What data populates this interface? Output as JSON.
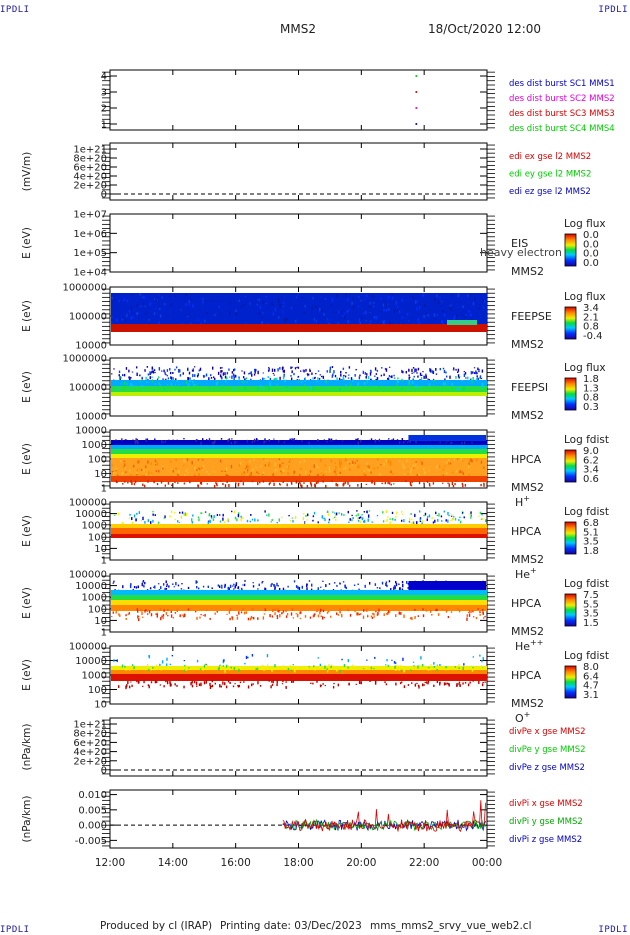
{
  "corner_label": "IPDLI",
  "header": {
    "title": "MMS2",
    "datetime": "18/Oct/2020 12:00"
  },
  "footer": {
    "producer": "Produced by cl (IRAP)",
    "printing": "Printing date: 03/Dec/2023",
    "script": "mms_mms2_srvy_vue_web2.cl"
  },
  "colors": {
    "blue": "#0000cc",
    "magenta": "#e000e0",
    "red": "#dd0000",
    "green": "#00cc00",
    "dark_green": "#00aa00"
  },
  "x_ticks": [
    "12:00",
    "14:00",
    "16:00",
    "18:00",
    "20:00",
    "22:00",
    "00:00"
  ],
  "chart_data": [
    {
      "id": "burst",
      "type": "scatter",
      "yticks": [
        "4",
        "3",
        "2",
        "1"
      ],
      "legend": [
        {
          "text": "des dist burst SC1 MMS1",
          "color": "#0000cc"
        },
        {
          "text": "des dist burst SC2 MMS2",
          "color": "#e000e0"
        },
        {
          "text": "des dist burst SC3 MMS3",
          "color": "#dd0000"
        },
        {
          "text": "des dist burst SC4 MMS4",
          "color": "#00cc00"
        }
      ],
      "series": [
        {
          "x": "21:45",
          "y": 1,
          "color": "#0000cc"
        },
        {
          "x": "21:45",
          "y": 2,
          "color": "#e000e0"
        },
        {
          "x": "21:45",
          "y": 3,
          "color": "#dd0000"
        },
        {
          "x": "21:45",
          "y": 4,
          "color": "#00cc00"
        }
      ]
    },
    {
      "id": "edi",
      "type": "line",
      "ylabel": "(mV/m)",
      "yticks": [
        "1e+21",
        "8e+20",
        "6e+20",
        "4e+20",
        "2e+20",
        "0"
      ],
      "legend": [
        {
          "text": "edi ex gse l2 MMS2",
          "color": "#dd0000"
        },
        {
          "text": "edi ey gse l2 MMS2",
          "color": "#00cc00"
        },
        {
          "text": "edi ez gse l2 MMS2",
          "color": "#0000cc"
        }
      ]
    },
    {
      "id": "eis",
      "type": "heatmap",
      "ylabel": "E (eV)",
      "yticks": [
        "1e+07",
        "1e+06",
        "1e+05",
        "1e+04"
      ],
      "labels": [
        "EIS",
        "MMS2"
      ],
      "overlay": "heavy electron to",
      "colorbar": {
        "title": "Log flux",
        "ticks": [
          "0.0",
          "0.0",
          "0.0",
          "0.0"
        ]
      }
    },
    {
      "id": "feeps_e",
      "type": "heatmap",
      "ylabel": "E (eV)",
      "yticks": [
        "1000000",
        "100000",
        "10000"
      ],
      "labels": [
        "FEEPSE",
        "MMS2"
      ],
      "colorbar": {
        "title": "Log flux",
        "ticks": [
          "3.4",
          "2.1",
          "0.8",
          "-0.4"
        ]
      }
    },
    {
      "id": "feeps_i",
      "type": "heatmap",
      "ylabel": "E (eV)",
      "yticks": [
        "1000000",
        "100000",
        "10000"
      ],
      "labels": [
        "FEEPSI",
        "MMS2"
      ],
      "colorbar": {
        "title": "Log flux",
        "ticks": [
          "1.8",
          "1.3",
          "0.8",
          "0.3"
        ]
      }
    },
    {
      "id": "hpca_h",
      "type": "heatmap",
      "ylabel": "E (eV)",
      "yticks": [
        "10000",
        "1000",
        "100",
        "10",
        "1"
      ],
      "labels": [
        "HPCA",
        "MMS2"
      ],
      "species": "H",
      "species_sup": "+",
      "colorbar": {
        "title": "Log fdist",
        "ticks": [
          "9.0",
          "6.2",
          "3.4",
          "0.6"
        ]
      }
    },
    {
      "id": "hpca_he",
      "type": "heatmap",
      "ylabel": "E (eV)",
      "yticks": [
        "100000",
        "10000",
        "1000",
        "100",
        "10",
        "1"
      ],
      "labels": [
        "HPCA",
        "MMS2"
      ],
      "species": "He",
      "species_sup": "+",
      "colorbar": {
        "title": "Log fdist",
        "ticks": [
          "6.8",
          "5.1",
          "3.5",
          "1.8"
        ]
      }
    },
    {
      "id": "hpca_he2",
      "type": "heatmap",
      "ylabel": "E (eV)",
      "yticks": [
        "100000",
        "10000",
        "1000",
        "100",
        "10",
        "1"
      ],
      "labels": [
        "HPCA",
        "MMS2"
      ],
      "species": "He",
      "species_sup": "++",
      "colorbar": {
        "title": "Log fdist",
        "ticks": [
          "7.5",
          "5.5",
          "3.5",
          "1.5"
        ]
      }
    },
    {
      "id": "hpca_o",
      "type": "heatmap",
      "ylabel": "E (eV)",
      "yticks": [
        "100000",
        "10000",
        "1000",
        "100",
        "10"
      ],
      "labels": [
        "HPCA",
        "MMS2"
      ],
      "species": "O",
      "species_sup": "+",
      "colorbar": {
        "title": "Log fdist",
        "ticks": [
          "8.0",
          "6.4",
          "4.7",
          "3.1"
        ]
      }
    },
    {
      "id": "divpe",
      "type": "line",
      "ylabel": "(nPa/km)",
      "yticks": [
        "1e+21",
        "8e+20",
        "6e+20",
        "4e+20",
        "2e+20",
        "0"
      ],
      "legend": [
        {
          "text": "divPe x gse MMS2",
          "color": "#dd0000"
        },
        {
          "text": "divPe y gse MMS2",
          "color": "#00cc00"
        },
        {
          "text": "divPe z gse MMS2",
          "color": "#0000cc"
        }
      ]
    },
    {
      "id": "divpi",
      "type": "line",
      "ylabel": "(nPa/km)",
      "yticks": [
        "0.010",
        "0.005",
        "0.000",
        "-0.005"
      ],
      "ylim": [
        -0.0075,
        0.0115
      ],
      "legend": [
        {
          "text": "divPi x gse MMS2",
          "color": "#dd0000"
        },
        {
          "text": "divPi y gse MMS2",
          "color": "#00aa00"
        },
        {
          "text": "divPi z gse MMS2",
          "color": "#0000cc"
        }
      ]
    }
  ]
}
